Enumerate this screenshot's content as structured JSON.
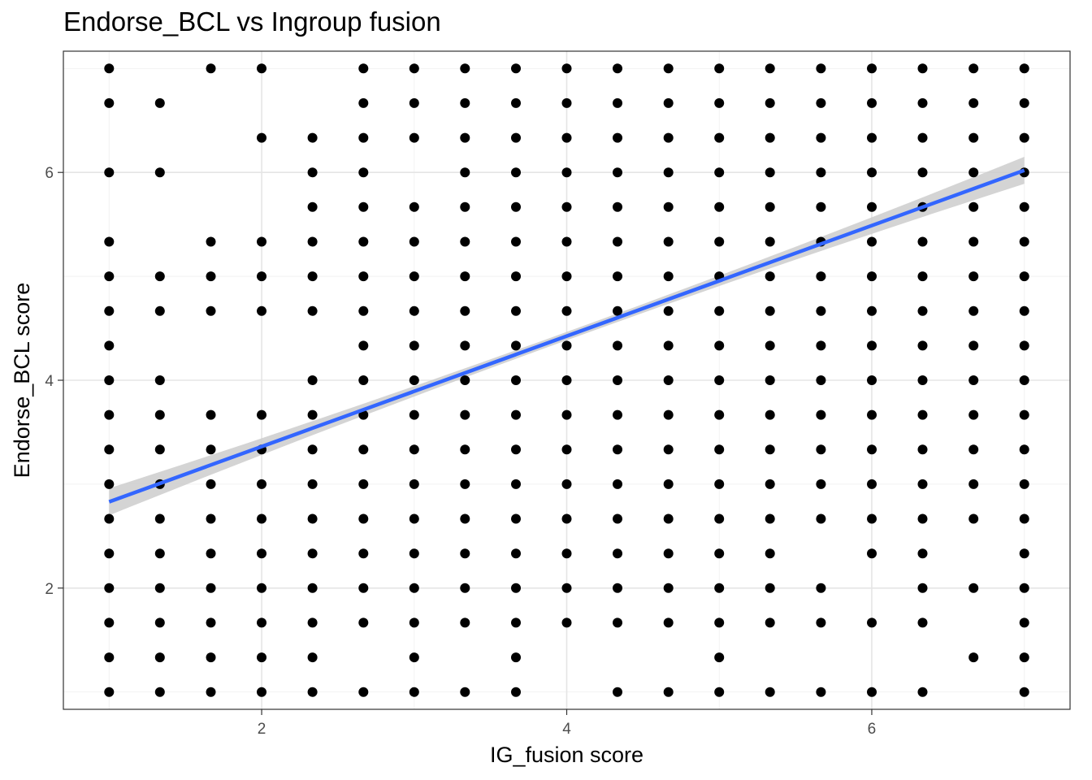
{
  "chart_data": {
    "type": "scatter",
    "title": "Endorse_BCL vs Ingroup fusion",
    "xlabel": "IG_fusion score",
    "ylabel": "Endorse_BCL score",
    "xlim": [
      0.7,
      7.3
    ],
    "ylim": [
      0.8333,
      7.1667
    ],
    "x_ticks": [
      2,
      4,
      6
    ],
    "y_ticks": [
      2,
      4,
      6
    ],
    "grid": true,
    "theme": "bw",
    "x_levels": [
      1,
      1.333,
      1.667,
      2,
      2.333,
      2.667,
      3,
      3.333,
      3.667,
      4,
      4.333,
      4.667,
      5,
      5.333,
      5.667,
      6,
      6.333,
      6.667,
      7
    ],
    "y_levels": [
      1,
      1.333,
      1.667,
      2,
      2.333,
      2.667,
      3,
      3.333,
      3.667,
      4,
      4.333,
      4.667,
      5,
      5.333,
      5.667,
      6,
      6.333,
      6.667,
      7
    ],
    "occupancy_note": "rows indexed by y_levels (ascending), characters by x_levels; 1 = point present",
    "occupancy": [
      "1111111110111111101",
      "1111101010001000011",
      "1111111111111111101",
      "1111111111111110111",
      "1111111111111101101",
      "1111111111111111111",
      "1111111111111111111",
      "1111111111111111111",
      "1111111111111111111",
      "1100111111111111111",
      "1000011111111111111",
      "1111111111111111111",
      "1111111111111111111",
      "1011111111111111111",
      "0000111111111111111",
      "1100110111111111111",
      "0001111111111111111",
      "1100011111111111111",
      "1011011111111111111"
    ],
    "point_color": "#000000",
    "fit_line": {
      "method": "lm",
      "x": [
        1,
        7
      ],
      "y": [
        2.83,
        6.02
      ],
      "color": "#3366FF",
      "se_band_half_width_ends": 0.13,
      "se_band_half_width_mid": 0.04,
      "se_color": "#cccccc"
    }
  }
}
